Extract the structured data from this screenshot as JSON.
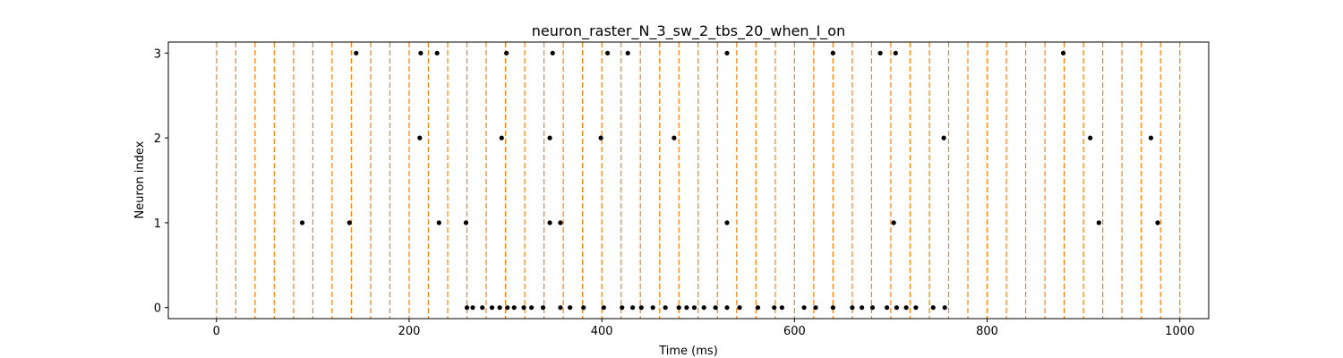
{
  "chart_data": {
    "type": "scatter",
    "title": "neuron_raster_N_3_sw_2_tbs_20_when_I_on",
    "xlabel": "Time (ms)",
    "ylabel": "Neuron index",
    "xlim": [
      -50,
      1030
    ],
    "ylim": [
      -0.13,
      3.13
    ],
    "xticks": [
      0,
      200,
      400,
      600,
      800,
      1000
    ],
    "yticks": [
      0,
      1,
      2,
      3
    ],
    "grid": false,
    "legend": "none",
    "marker_color": "#000000",
    "vline_color": "#ff7f0e",
    "vline_style": "dashed",
    "vlines_x": [
      0,
      20,
      40,
      60,
      80,
      100,
      120,
      140,
      160,
      180,
      200,
      220,
      240,
      260,
      280,
      300,
      320,
      340,
      360,
      380,
      400,
      420,
      440,
      460,
      480,
      500,
      520,
      540,
      560,
      580,
      600,
      620,
      640,
      660,
      680,
      700,
      720,
      740,
      760,
      780,
      800,
      820,
      840,
      860,
      880,
      900,
      920,
      940,
      960,
      980,
      1000
    ],
    "series": [
      {
        "y": 0,
        "x": [
          260,
          266,
          276,
          286,
          294,
          302,
          309,
          319,
          327,
          339,
          357,
          367,
          381,
          402,
          421,
          432,
          441,
          453,
          466,
          480,
          488,
          496,
          506,
          518,
          530,
          543,
          562,
          579,
          587,
          610,
          622,
          640,
          660,
          670,
          681,
          696,
          706,
          716,
          726,
          744,
          756
        ]
      },
      {
        "y": 1,
        "x": [
          89,
          138,
          231,
          259,
          346,
          357,
          530,
          703,
          916,
          977
        ]
      },
      {
        "y": 2,
        "x": [
          211,
          296,
          346,
          399,
          475,
          755,
          907,
          970
        ]
      },
      {
        "y": 3,
        "x": [
          145,
          212,
          229,
          301,
          349,
          406,
          427,
          530,
          640,
          689,
          705,
          879
        ]
      }
    ]
  }
}
